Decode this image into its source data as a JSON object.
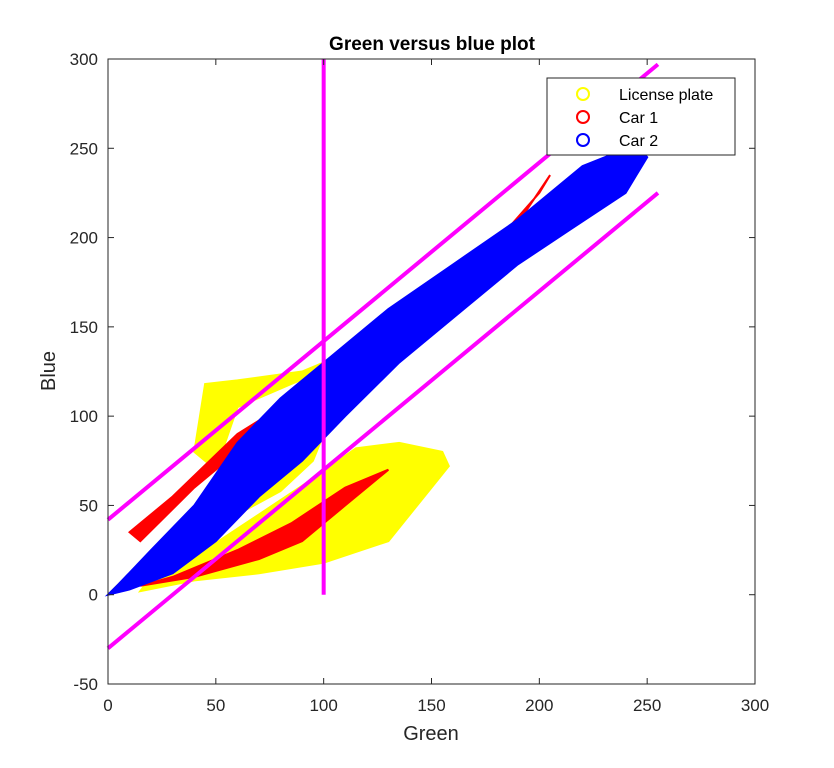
{
  "chart_data": {
    "type": "scatter",
    "title": "Green versus blue plot",
    "xlabel": "Green",
    "ylabel": "Blue",
    "xlim": [
      0,
      300
    ],
    "ylim": [
      -50,
      300
    ],
    "xticks": [
      0,
      50,
      100,
      150,
      200,
      250,
      300
    ],
    "yticks": [
      -50,
      0,
      50,
      100,
      150,
      200,
      250,
      300
    ],
    "grid": false,
    "legend_position": "top-right",
    "series": [
      {
        "name": "License plate",
        "color": "#ffff00",
        "marker": "circle",
        "regions": [
          {
            "polygon": [
              [
                40,
                80
              ],
              [
                45,
                118
              ],
              [
                60,
                120
              ],
              [
                90,
                125
              ],
              [
                110,
                135
              ],
              [
                125,
                140
              ],
              [
                140,
                150
              ],
              [
                105,
                128
              ],
              [
                85,
                118
              ],
              [
                60,
                105
              ],
              [
                50,
                70
              ]
            ]
          },
          {
            "polygon": [
              [
                15,
                2
              ],
              [
                40,
                8
              ],
              [
                70,
                12
              ],
              [
                100,
                18
              ],
              [
                130,
                30
              ],
              [
                150,
                60
              ],
              [
                158,
                72
              ],
              [
                155,
                80
              ],
              [
                135,
                85
              ],
              [
                115,
                82
              ],
              [
                95,
                65
              ],
              [
                70,
                45
              ],
              [
                45,
                25
              ],
              [
                20,
                10
              ]
            ]
          },
          {
            "polygon": [
              [
                0,
                0
              ],
              [
                10,
                12
              ],
              [
                30,
                28
              ],
              [
                60,
                45
              ],
              [
                80,
                58
              ],
              [
                95,
                75
              ],
              [
                100,
                90
              ],
              [
                85,
                75
              ],
              [
                60,
                50
              ],
              [
                30,
                22
              ],
              [
                10,
                8
              ]
            ]
          }
        ]
      },
      {
        "name": "Car 1",
        "color": "#ff0000",
        "marker": "circle",
        "regions": [
          {
            "polygon": [
              [
                10,
                35
              ],
              [
                30,
                55
              ],
              [
                60,
                90
              ],
              [
                100,
                120
              ],
              [
                140,
                155
              ],
              [
                180,
                190
              ],
              [
                205,
                235
              ],
              [
                200,
                225
              ],
              [
                160,
                170
              ],
              [
                120,
                130
              ],
              [
                80,
                100
              ],
              [
                40,
                60
              ],
              [
                15,
                30
              ]
            ]
          },
          {
            "polygon": [
              [
                15,
                5
              ],
              [
                40,
                10
              ],
              [
                70,
                20
              ],
              [
                90,
                30
              ],
              [
                110,
                50
              ],
              [
                130,
                70
              ],
              [
                110,
                60
              ],
              [
                85,
                40
              ],
              [
                60,
                25
              ],
              [
                30,
                10
              ]
            ]
          }
        ]
      },
      {
        "name": "Car 2",
        "color": "#0000ff",
        "marker": "circle",
        "regions": [
          {
            "polygon": [
              [
                0,
                0
              ],
              [
                5,
                6
              ],
              [
                20,
                25
              ],
              [
                40,
                50
              ],
              [
                60,
                85
              ],
              [
                80,
                110
              ],
              [
                100,
                130
              ],
              [
                130,
                160
              ],
              [
                160,
                185
              ],
              [
                190,
                210
              ],
              [
                220,
                240
              ],
              [
                245,
                252
              ],
              [
                250,
                245
              ],
              [
                240,
                225
              ],
              [
                215,
                205
              ],
              [
                190,
                185
              ],
              [
                165,
                160
              ],
              [
                135,
                130
              ],
              [
                110,
                100
              ],
              [
                90,
                75
              ],
              [
                70,
                55
              ],
              [
                50,
                30
              ],
              [
                30,
                12
              ],
              [
                10,
                3
              ]
            ]
          }
        ]
      }
    ],
    "reference_lines": [
      {
        "color": "#ff00ff",
        "from": [
          0,
          42
        ],
        "to": [
          255,
          297
        ]
      },
      {
        "color": "#ff00ff",
        "from": [
          0,
          -30
        ],
        "to": [
          255,
          225
        ]
      },
      {
        "color": "#ff00ff",
        "from": [
          100,
          0
        ],
        "to": [
          100,
          300
        ]
      }
    ]
  }
}
